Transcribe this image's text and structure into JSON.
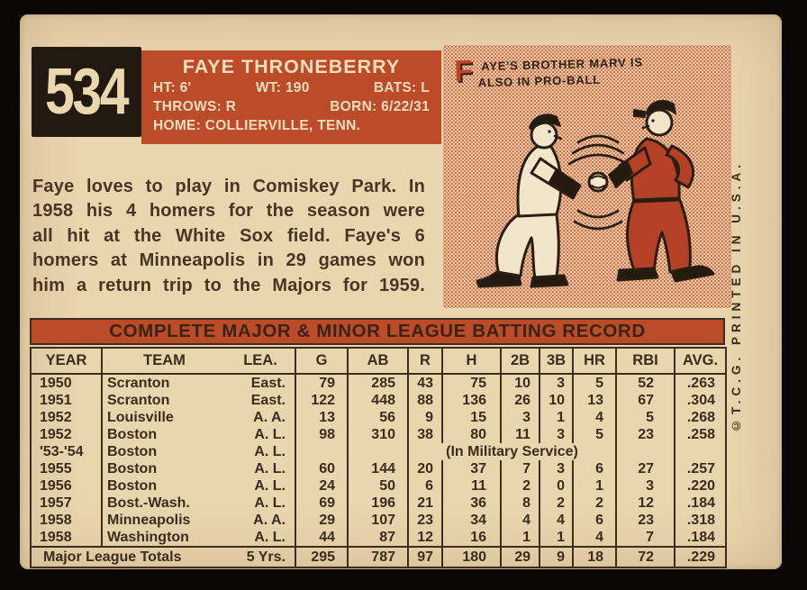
{
  "colors": {
    "background": "#0a0806",
    "card_cream": "#e9d5ae",
    "accent_red": "#bc4b2a",
    "cartoon_red": "#b44026",
    "dark_text": "#3c2c1b",
    "cream_text": "#f3dfbc",
    "halftone_dot": "#cf6a45"
  },
  "header": {
    "card_number": "534",
    "player_name": "FAYE THRONEBERRY",
    "stats_line1": {
      "ht": "HT: 6'",
      "wt": "WT: 190",
      "bats": "BATS: L"
    },
    "stats_line2": {
      "throws": "THROWS: R",
      "born": "BORN: 6/22/31"
    },
    "stats_line3": {
      "home": "HOME: COLLIERVILLE, TENN."
    }
  },
  "bio_lines": [
    "Faye loves to play in Comiskey Park. In",
    "1958 his 4 homers for the season were",
    "all hit at the White Sox field. Faye's 6",
    "homers at Minneapolis in 29 games won",
    "him a return trip to the Majors for 1959."
  ],
  "cartoon": {
    "caption_initial": "F",
    "caption_line1": "AYE'S BROTHER MARV IS",
    "caption_line2": "ALSO IN PRO-BALL"
  },
  "side_text": "©T.C.G. PRINTED IN U.S.A.",
  "table": {
    "title": "COMPLETE MAJOR & MINOR LEAGUE BATTING RECORD",
    "columns": [
      "YEAR",
      "TEAM",
      "LEA.",
      "G",
      "AB",
      "R",
      "H",
      "2B",
      "3B",
      "HR",
      "RBI",
      "AVG."
    ],
    "rows": [
      [
        "1950",
        "Scranton",
        "East.",
        "79",
        "285",
        "43",
        "75",
        "10",
        "3",
        "5",
        "52",
        ".263"
      ],
      [
        "1951",
        "Scranton",
        "East.",
        "122",
        "448",
        "88",
        "136",
        "26",
        "10",
        "13",
        "67",
        ".304"
      ],
      [
        "1952",
        "Louisville",
        "A. A.",
        "13",
        "56",
        "9",
        "15",
        "3",
        "1",
        "4",
        "5",
        ".268"
      ],
      [
        "1952",
        "Boston",
        "A. L.",
        "98",
        "310",
        "38",
        "80",
        "11",
        "3",
        "5",
        "23",
        ".258"
      ],
      {
        "military": true,
        "year": "'53-'54",
        "team": "Boston",
        "lea": "A. L.",
        "note": "(In Military Service)"
      },
      [
        "1955",
        "Boston",
        "A. L.",
        "60",
        "144",
        "20",
        "37",
        "7",
        "3",
        "6",
        "27",
        ".257"
      ],
      [
        "1956",
        "Boston",
        "A. L.",
        "24",
        "50",
        "6",
        "11",
        "2",
        "0",
        "1",
        "3",
        ".220"
      ],
      [
        "1957",
        "Bost.-Wash.",
        "A. L.",
        "69",
        "196",
        "21",
        "36",
        "8",
        "2",
        "2",
        "12",
        ".184"
      ],
      [
        "1958",
        "Minneapolis",
        "A. A.",
        "29",
        "107",
        "23",
        "34",
        "4",
        "4",
        "6",
        "23",
        ".318"
      ],
      [
        "1958",
        "Washington",
        "A. L.",
        "44",
        "87",
        "12",
        "16",
        "1",
        "1",
        "4",
        "7",
        ".184"
      ]
    ],
    "totals_row": {
      "label": "Major League Totals",
      "years": "5 Yrs.",
      "values": [
        "295",
        "787",
        "97",
        "180",
        "29",
        "9",
        "18",
        "72",
        ".229"
      ]
    }
  }
}
